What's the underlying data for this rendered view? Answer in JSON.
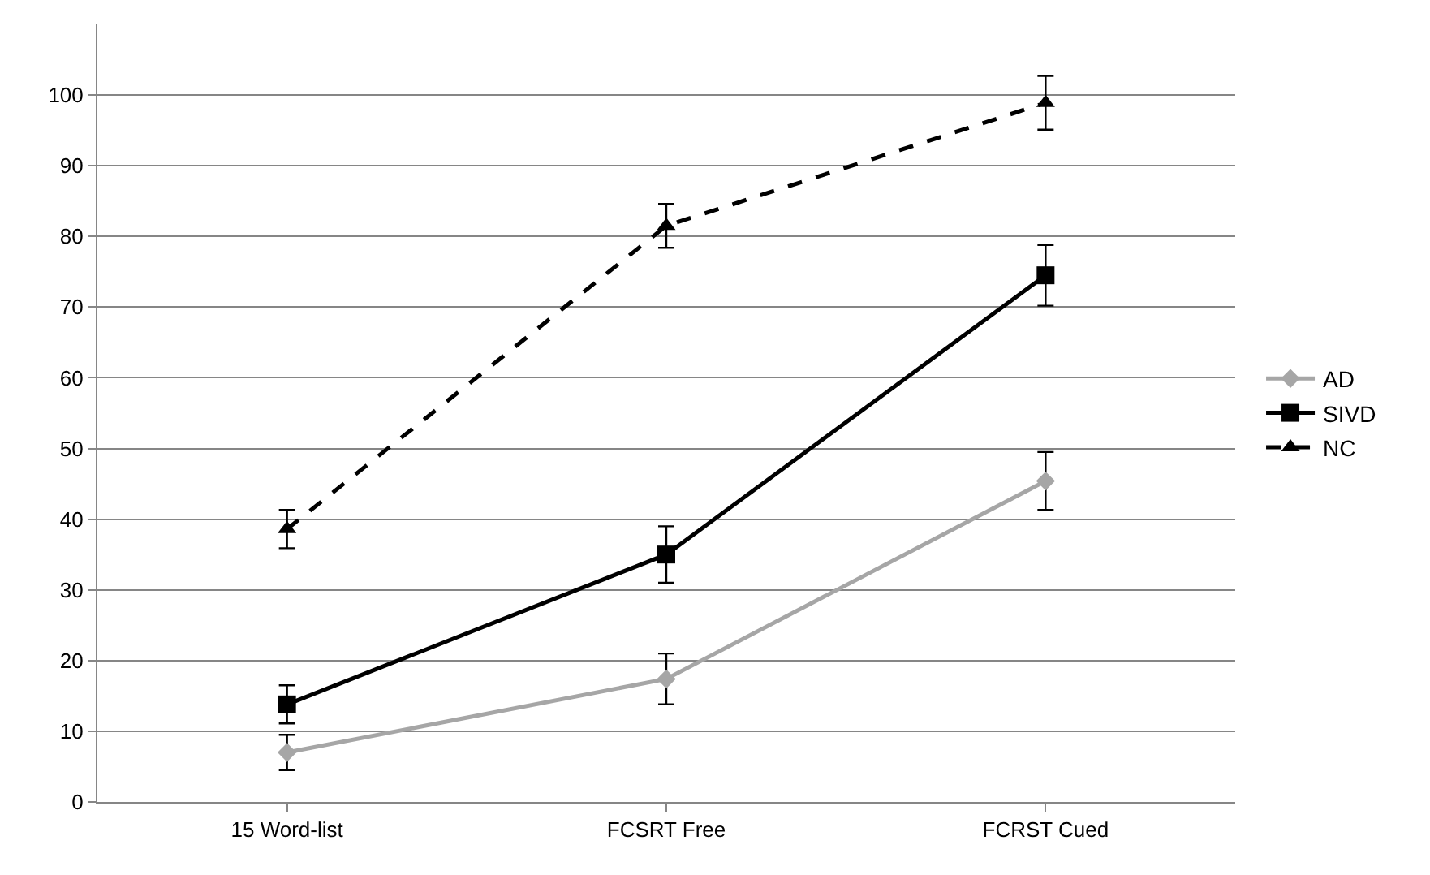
{
  "chart_data": {
    "type": "line",
    "categories": [
      "15 Word-list",
      "FCSRT Free",
      "FCRST Cued"
    ],
    "series": [
      {
        "name": "AD",
        "color": "#a6a6a6",
        "values": [
          7,
          17.4,
          45.4
        ],
        "errors": [
          2.5,
          3.6,
          4.1
        ],
        "marker": "diamond",
        "line_style": "solid"
      },
      {
        "name": "SIVD",
        "color": "#000000",
        "values": [
          13.8,
          35,
          74.5
        ],
        "errors": [
          2.7,
          4,
          4.3
        ],
        "marker": "square",
        "line_style": "solid"
      },
      {
        "name": "NC",
        "color": "#000000",
        "values": [
          38.6,
          81.5,
          98.9
        ],
        "errors": [
          2.7,
          3.1,
          3.8
        ],
        "marker": "triangle",
        "line_style": "dashed"
      }
    ],
    "ylim": [
      0,
      110
    ],
    "yticks": [
      0,
      10,
      20,
      30,
      40,
      50,
      60,
      70,
      80,
      90,
      100
    ],
    "grid": "y",
    "legend": "right"
  }
}
